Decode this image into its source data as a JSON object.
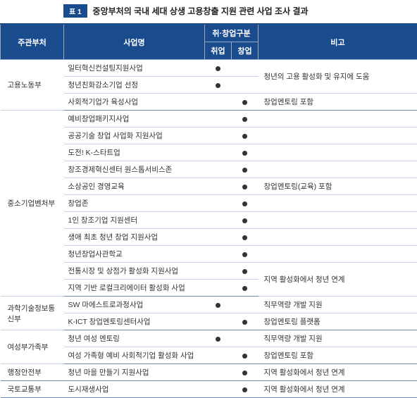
{
  "title": {
    "badge": "표 1",
    "text": "중앙부처의 국내 세대 상생 고용창출 지원 관련 사업 조사 결과"
  },
  "header": {
    "dept": "주관부처",
    "name": "사업명",
    "category_group": "취·창업구분",
    "emp": "취업",
    "start": "창업",
    "note": "비고"
  },
  "colors": {
    "header_bg": "#1a4b8c",
    "header_fg": "#ffffff",
    "row_border": "#c8d4e3"
  },
  "rows": [
    {
      "dept": "고용노동부",
      "dept_rowspan": 3,
      "name": "일터혁신컨설팅지원사업",
      "emp": true,
      "start": false,
      "note": "청년의 고용 활성화 및 유지에 도움",
      "note_rowspan": 2
    },
    {
      "name": "청년친화강소기업 선정",
      "emp": true,
      "start": false
    },
    {
      "name": "사회적기업가 육성사업",
      "emp": false,
      "start": true,
      "note": "창업멘토링 포함",
      "sep": true
    },
    {
      "dept": "중소기업벤처부",
      "dept_rowspan": 11,
      "name": "예비창업패키지사업",
      "emp": false,
      "start": true,
      "note": ""
    },
    {
      "name": "공공기술 창업 사업화 지원사업",
      "emp": false,
      "start": true,
      "note": ""
    },
    {
      "name": "도전! K-스타트업",
      "emp": false,
      "start": true,
      "note": ""
    },
    {
      "name": "창조경제혁신센터 원스톱서비스존",
      "emp": false,
      "start": true,
      "note": ""
    },
    {
      "name": "소상공인 경영교육",
      "emp": false,
      "start": true,
      "note": "창업멘토링(교육) 포함"
    },
    {
      "name": "창업존",
      "emp": false,
      "start": true,
      "note": ""
    },
    {
      "name": "1인 창조기업 지원센터",
      "emp": false,
      "start": true,
      "note": ""
    },
    {
      "name": "생애 최초 청년 창업 지원사업",
      "emp": false,
      "start": true,
      "note": ""
    },
    {
      "name": "청년창업사관학교",
      "emp": false,
      "start": true,
      "note": ""
    },
    {
      "name": "전통시장 및 상점가 활성화 지원사업",
      "emp": false,
      "start": true,
      "note": "지역 활성화에서 청년 연계",
      "note_rowspan": 2
    },
    {
      "name": "지역 기반 로컬크리에이터 활성화 사업",
      "emp": false,
      "start": true,
      "sep": true
    },
    {
      "dept": "과학기술정보통신부",
      "dept_rowspan": 2,
      "name": "SW 마에스트로과정사업",
      "emp": true,
      "start": false,
      "note": "직무역량 개발 지원"
    },
    {
      "name": "K-ICT 창업멘토링센터사업",
      "emp": false,
      "start": true,
      "note": "창업멘토링 플랫폼",
      "sep": true
    },
    {
      "dept": "여성부가족부",
      "dept_rowspan": 2,
      "name": "청년 여성 멘토링",
      "emp": true,
      "start": false,
      "note": "직무역량 개발 지원"
    },
    {
      "name": "여성 가족형 예비 사회적기업 활성화 사업",
      "emp": false,
      "start": true,
      "note": "창업멘토링 포함",
      "sep": true
    },
    {
      "dept": "행정안전부",
      "dept_rowspan": 1,
      "name": "청년 마을 만들기 지원사업",
      "emp": false,
      "start": true,
      "note": "지역 활성화에서 청년 연계",
      "sep": true
    },
    {
      "dept": "국토교통부",
      "dept_rowspan": 1,
      "name": "도시재생사업",
      "emp": false,
      "start": true,
      "note": "지역 활성화에서 청년 연계",
      "sep": true
    }
  ]
}
